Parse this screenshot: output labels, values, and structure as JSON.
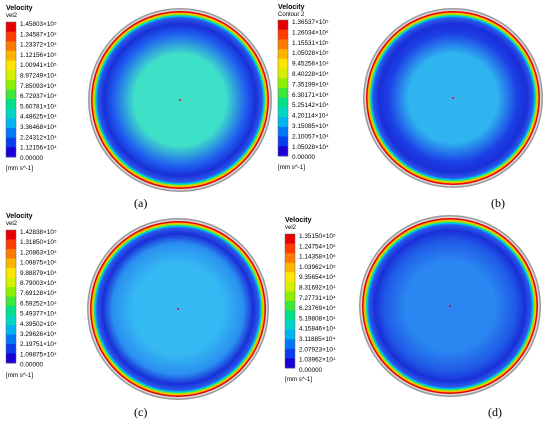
{
  "panels": [
    {
      "title": "Velocity",
      "subtitle": "vel2",
      "ticks": [
        "1.45803×10⁵",
        "1.34587×10⁵",
        "1.23372×10⁵",
        "1.12156×10⁵",
        "1.00941×10⁵",
        "8.97249×10⁴",
        "7.85093×10⁴",
        "6.72937×10⁴",
        "5.60781×10⁴",
        "4.48625×10⁴",
        "3.36468×10⁴",
        "2.24312×10⁴",
        "1.12156×10⁴",
        "0.00000"
      ],
      "unit": "[mm s^-1]",
      "caption": "(a)",
      "core_color": "#3fe0c8",
      "ring_color": "#1f5ff0"
    },
    {
      "title": "Velocity",
      "subtitle": "Contour 2",
      "ticks": [
        "1.36537×10⁵",
        "1.26034×10⁵",
        "1.15531×10⁵",
        "1.05028×10⁵",
        "9.45256×10⁴",
        "8.40228×10⁴",
        "7.35199×10⁴",
        "6.30171×10⁴",
        "5.25142×10⁴",
        "4.20114×10⁴",
        "3.15085×10⁴",
        "2.10057×10⁴",
        "1.05028×10⁴",
        "0.00000"
      ],
      "unit": "[mm s^-1]",
      "caption": "(b)",
      "core_color": "#2fb4f0",
      "ring_color": "#1c3fe6"
    },
    {
      "title": "Velocity",
      "subtitle": "vel2",
      "ticks": [
        "1.42838×10⁵",
        "1.31850×10⁵",
        "1.20863×10⁵",
        "1.09875×10⁵",
        "9.88879×10⁴",
        "8.79003×10⁴",
        "7.69128×10⁴",
        "6.59252×10⁴",
        "5.49377×10⁴",
        "4.39502×10⁴",
        "3.29626×10⁴",
        "2.19751×10⁴",
        "1.09875×10⁴",
        "0.00000"
      ],
      "unit": "[mm s^-1]",
      "caption": "(c)",
      "core_color": "#35b9f2",
      "ring_color": "#2a8ff0"
    },
    {
      "title": "Velocity",
      "subtitle": "vel2",
      "ticks": [
        "1.35150×10⁵",
        "1.24754×10⁵",
        "1.14358×10⁵",
        "1.03962×10⁵",
        "9.35654×10⁴",
        "8.31692×10⁴",
        "7.27731×10⁴",
        "6.23769×10⁴",
        "5.19808×10⁴",
        "4.15846×10⁴",
        "3.11885×10⁴",
        "2.07923×10⁴",
        "1.03962×10⁴",
        "0.00000"
      ],
      "unit": "[mm s^-1]",
      "caption": "(d)",
      "core_color": "#2a86f0",
      "ring_color": "#1f5ae8"
    }
  ],
  "colormap": [
    "#e80000",
    "#ff3b00",
    "#ff7a00",
    "#ffb400",
    "#ffe600",
    "#d4f000",
    "#8ef000",
    "#3ee83a",
    "#00e08a",
    "#00d6c8",
    "#00b4f0",
    "#0078f5",
    "#0a3cf0",
    "#1a00d8"
  ]
}
